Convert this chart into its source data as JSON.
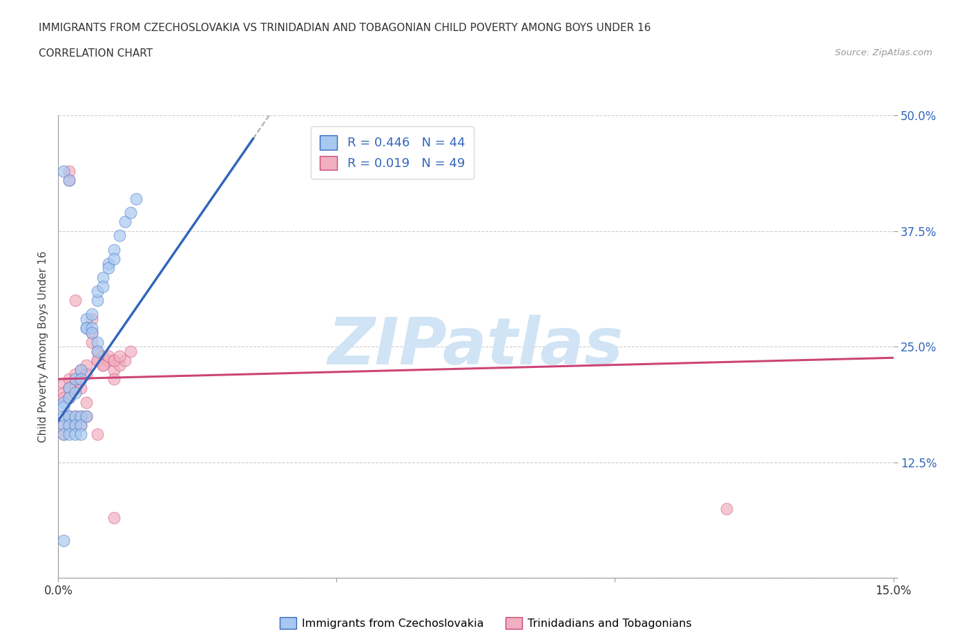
{
  "title": "IMMIGRANTS FROM CZECHOSLOVAKIA VS TRINIDADIAN AND TOBAGONIAN CHILD POVERTY AMONG BOYS UNDER 16",
  "subtitle": "CORRELATION CHART",
  "source": "Source: ZipAtlas.com",
  "ylabel_label": "Child Poverty Among Boys Under 16",
  "xlim": [
    0.0,
    0.15
  ],
  "ylim": [
    0.0,
    0.5
  ],
  "xticks": [
    0.0,
    0.05,
    0.1,
    0.15
  ],
  "xtick_labels": [
    "0.0%",
    "",
    "",
    "15.0%"
  ],
  "yticks": [
    0.0,
    0.125,
    0.25,
    0.375,
    0.5
  ],
  "ytick_labels": [
    "",
    "12.5%",
    "25.0%",
    "37.5%",
    "50.0%"
  ],
  "legend_R1": "0.446",
  "legend_N1": "44",
  "legend_R2": "0.019",
  "legend_N2": "49",
  "color_blue": "#a8c8f0",
  "color_pink": "#f0b0c0",
  "line_blue": "#3366bb",
  "line_pink": "#cc4477",
  "line_diag": "#aaaaaa",
  "watermark": "ZIPatlas",
  "watermark_color": "#d0e4f5",
  "blue_line_x0": 0.0,
  "blue_line_y0": 0.17,
  "blue_line_x1": 0.035,
  "blue_line_y1": 0.475,
  "blue_line_solid_end": 0.035,
  "blue_line_dash_end": 0.15,
  "pink_line_x0": 0.0,
  "pink_line_y0": 0.215,
  "pink_line_x1": 0.15,
  "pink_line_y1": 0.238,
  "blue_scatter": [
    [
      0.001,
      0.44
    ],
    [
      0.002,
      0.43
    ],
    [
      0.001,
      0.19
    ],
    [
      0.001,
      0.185
    ],
    [
      0.002,
      0.205
    ],
    [
      0.002,
      0.195
    ],
    [
      0.003,
      0.215
    ],
    [
      0.003,
      0.2
    ],
    [
      0.004,
      0.225
    ],
    [
      0.004,
      0.215
    ],
    [
      0.005,
      0.28
    ],
    [
      0.005,
      0.27
    ],
    [
      0.005,
      0.27
    ],
    [
      0.006,
      0.285
    ],
    [
      0.006,
      0.27
    ],
    [
      0.006,
      0.265
    ],
    [
      0.007,
      0.255
    ],
    [
      0.007,
      0.245
    ],
    [
      0.007,
      0.3
    ],
    [
      0.007,
      0.31
    ],
    [
      0.008,
      0.325
    ],
    [
      0.008,
      0.315
    ],
    [
      0.009,
      0.34
    ],
    [
      0.009,
      0.335
    ],
    [
      0.01,
      0.355
    ],
    [
      0.01,
      0.345
    ],
    [
      0.011,
      0.37
    ],
    [
      0.012,
      0.385
    ],
    [
      0.013,
      0.395
    ],
    [
      0.014,
      0.41
    ],
    [
      0.001,
      0.175
    ],
    [
      0.001,
      0.165
    ],
    [
      0.001,
      0.155
    ],
    [
      0.002,
      0.175
    ],
    [
      0.002,
      0.165
    ],
    [
      0.002,
      0.155
    ],
    [
      0.003,
      0.175
    ],
    [
      0.003,
      0.165
    ],
    [
      0.003,
      0.155
    ],
    [
      0.004,
      0.175
    ],
    [
      0.004,
      0.165
    ],
    [
      0.004,
      0.155
    ],
    [
      0.005,
      0.175
    ],
    [
      0.001,
      0.04
    ]
  ],
  "pink_scatter": [
    [
      0.001,
      0.21
    ],
    [
      0.001,
      0.2
    ],
    [
      0.001,
      0.195
    ],
    [
      0.002,
      0.215
    ],
    [
      0.002,
      0.205
    ],
    [
      0.002,
      0.195
    ],
    [
      0.003,
      0.22
    ],
    [
      0.003,
      0.21
    ],
    [
      0.003,
      0.205
    ],
    [
      0.003,
      0.3
    ],
    [
      0.004,
      0.225
    ],
    [
      0.004,
      0.215
    ],
    [
      0.004,
      0.205
    ],
    [
      0.005,
      0.23
    ],
    [
      0.005,
      0.22
    ],
    [
      0.005,
      0.19
    ],
    [
      0.006,
      0.28
    ],
    [
      0.006,
      0.265
    ],
    [
      0.006,
      0.255
    ],
    [
      0.007,
      0.245
    ],
    [
      0.007,
      0.235
    ],
    [
      0.008,
      0.24
    ],
    [
      0.008,
      0.23
    ],
    [
      0.009,
      0.235
    ],
    [
      0.01,
      0.235
    ],
    [
      0.01,
      0.225
    ],
    [
      0.01,
      0.215
    ],
    [
      0.011,
      0.23
    ],
    [
      0.012,
      0.235
    ],
    [
      0.013,
      0.245
    ],
    [
      0.001,
      0.165
    ],
    [
      0.001,
      0.155
    ],
    [
      0.002,
      0.175
    ],
    [
      0.002,
      0.165
    ],
    [
      0.002,
      0.43
    ],
    [
      0.002,
      0.44
    ],
    [
      0.003,
      0.175
    ],
    [
      0.003,
      0.165
    ],
    [
      0.004,
      0.175
    ],
    [
      0.004,
      0.165
    ],
    [
      0.005,
      0.175
    ],
    [
      0.007,
      0.155
    ],
    [
      0.007,
      0.235
    ],
    [
      0.008,
      0.23
    ],
    [
      0.009,
      0.24
    ],
    [
      0.01,
      0.235
    ],
    [
      0.011,
      0.24
    ],
    [
      0.01,
      0.065
    ],
    [
      0.12,
      0.075
    ]
  ]
}
